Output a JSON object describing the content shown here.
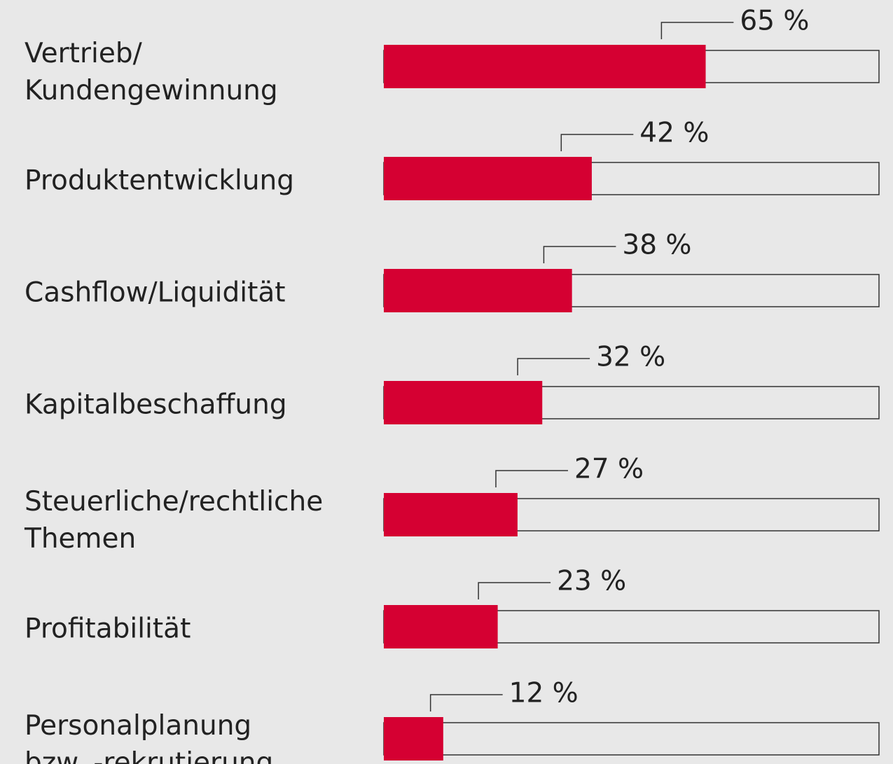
{
  "chart_data": {
    "type": "hbar",
    "categories": [
      [
        "Vertrieb/",
        "Kundengewinnung"
      ],
      [
        "Produktentwicklung"
      ],
      [
        "Cashflow/Liquidität"
      ],
      [
        "Kapitalbeschaffung"
      ],
      [
        "Steuerliche/rechtliche",
        "Themen"
      ],
      [
        "Profitabilität"
      ],
      [
        "Personalplanung",
        "bzw. -rekrutierung"
      ]
    ],
    "values": [
      65,
      42,
      38,
      32,
      27,
      23,
      12
    ],
    "value_labels": [
      "65 %",
      "42 %",
      "38 %",
      "32 %",
      "27 %",
      "23 %",
      "12 %"
    ],
    "color": "#d50032",
    "xlim": [
      0,
      100
    ]
  }
}
